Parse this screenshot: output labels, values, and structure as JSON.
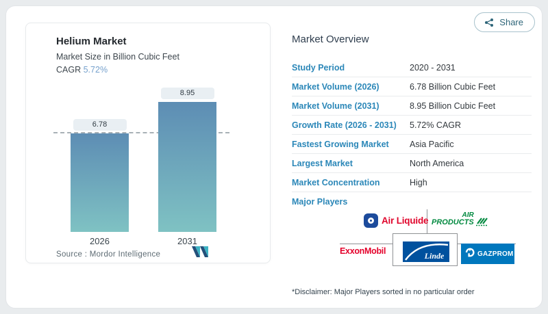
{
  "share": {
    "label": "Share"
  },
  "chart": {
    "title": "Helium Market",
    "subtitle": "Market Size in Billion Cubic Feet",
    "cagr_label": "CAGR",
    "cagr_value": "5.72%",
    "source_label": "Source :",
    "source_value": "Mordor Intelligence"
  },
  "chart_data": {
    "type": "bar",
    "title": "Helium Market",
    "subtitle": "Market Size in Billion Cubic Feet",
    "cagr": "5.72%",
    "categories": [
      "2026",
      "2031"
    ],
    "values": [
      6.78,
      8.95
    ],
    "bar_labels": [
      "6.78",
      "8.95"
    ],
    "unit": "Billion Cubic Feet",
    "ylim": [
      0,
      8.95
    ],
    "reference_line": 6.78,
    "grid": false,
    "legend": "none",
    "colors": {
      "bar_gradient_top": "#5d8db4",
      "bar_gradient_bottom": "#7fc2c3"
    }
  },
  "overview": {
    "title": "Market Overview",
    "rows": [
      {
        "label": "Study Period",
        "value": "2020 - 2031"
      },
      {
        "label": "Market Volume (2026)",
        "value": "6.78 Billion Cubic Feet"
      },
      {
        "label": "Market Volume (2031)",
        "value": "8.95 Billion Cubic Feet"
      },
      {
        "label": "Growth Rate (2026 - 2031)",
        "value": "5.72% CAGR"
      },
      {
        "label": "Fastest Growing Market",
        "value": "Asia Pacific"
      },
      {
        "label": "Largest Market",
        "value": "North America"
      },
      {
        "label": "Market Concentration",
        "value": "High"
      },
      {
        "label": "Major Players",
        "value": ""
      }
    ],
    "disclaimer": "*Disclaimer: Major Players sorted in no particular order"
  },
  "players": {
    "air_liquide": "Air Liquide",
    "air_products_line1": "AIR",
    "air_products_line2": "PRODUCTS",
    "exxonmobil": "ExxonMobil",
    "linde": "Linde",
    "gazprom": "GAZPROM"
  },
  "colors": {
    "accent_label_blue": "#2b87b8",
    "cagr_blue": "#76a1cd",
    "air_liquide_red": "#e0062c",
    "air_products_green": "#00893f",
    "exxon_red": "#e4002b",
    "linde_blue": "#00519e",
    "gazprom_blue": "#0077bd"
  }
}
